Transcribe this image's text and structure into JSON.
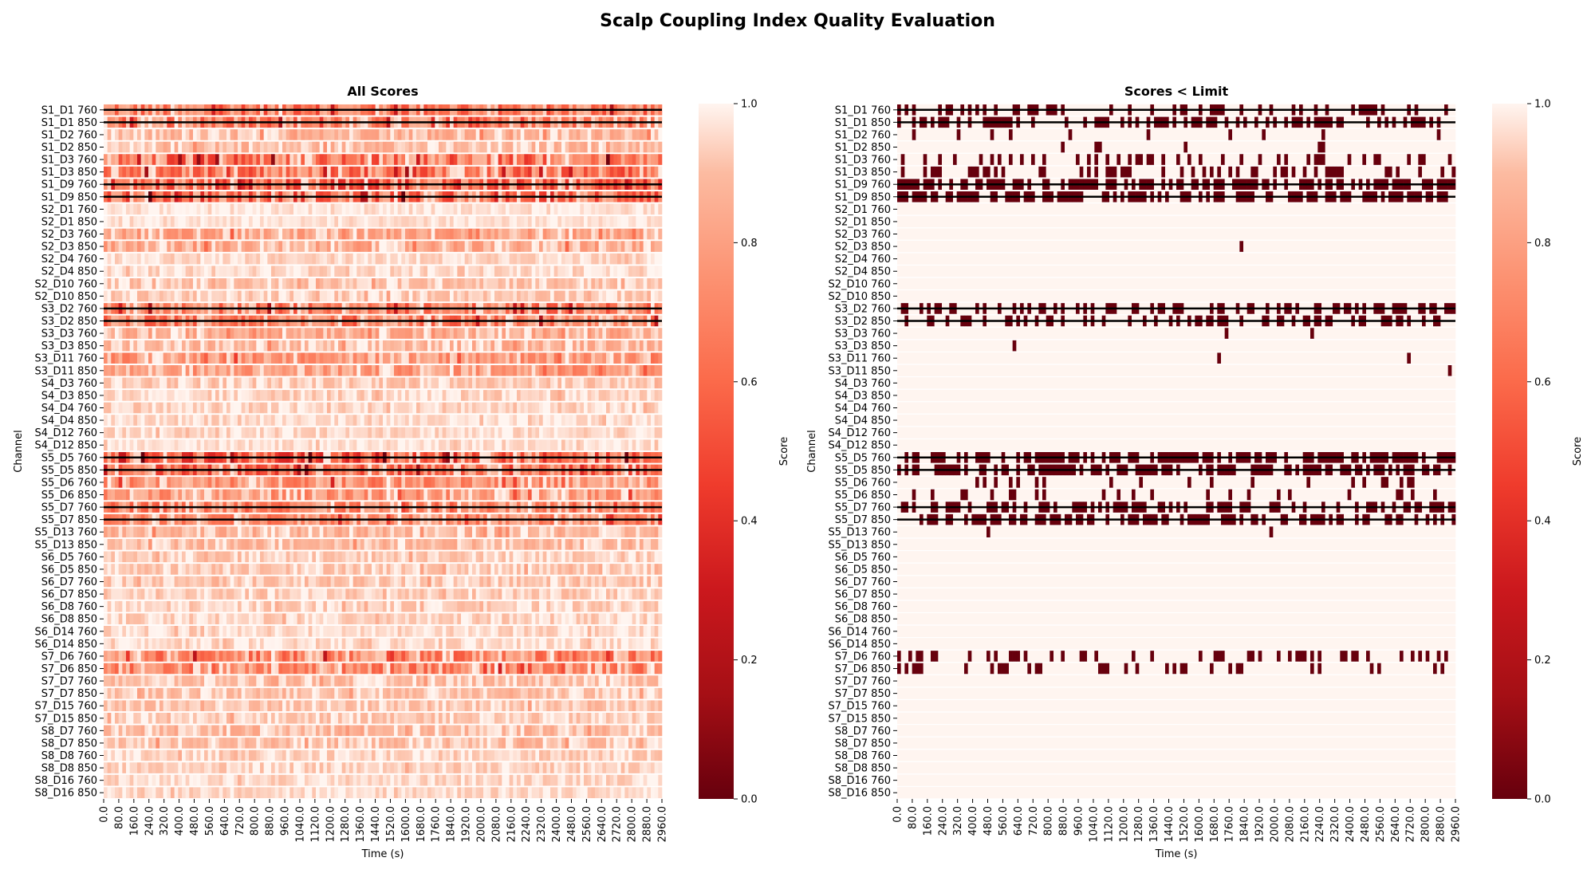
{
  "figure": {
    "title": "Scalp Coupling Index Quality Evaluation"
  },
  "colors": {
    "cmap_low": "#67000d",
    "cmap_mid": "#ef3b2c",
    "cmap_high": "#fff5f0",
    "bad_outline": "#000000"
  },
  "chart_data": [
    {
      "type": "heatmap",
      "title": "All Scores",
      "xlabel": "Time (s)",
      "ylabel": "Channel",
      "x_ticks": [
        "0.0",
        "80.0",
        "160.0",
        "240.0",
        "320.0",
        "400.0",
        "480.0",
        "560.0",
        "640.0",
        "720.0",
        "800.0",
        "880.0",
        "960.0",
        "1040.0",
        "1120.0",
        "1200.0",
        "1280.0",
        "1360.0",
        "1440.0",
        "1520.0",
        "1600.0",
        "1680.0",
        "1760.0",
        "1840.0",
        "1920.0",
        "2000.0",
        "2080.0",
        "2160.0",
        "2240.0",
        "2320.0",
        "2400.0",
        "2480.0",
        "2560.0",
        "2640.0",
        "2720.0",
        "2800.0",
        "2880.0",
        "2960.0"
      ],
      "x_range": [
        0,
        2960
      ],
      "channels": [
        "S1_D1 760",
        "S1_D1 850",
        "S1_D2 760",
        "S1_D2 850",
        "S1_D3 760",
        "S1_D3 850",
        "S1_D9 760",
        "S1_D9 850",
        "S2_D1 760",
        "S2_D1 850",
        "S2_D3 760",
        "S2_D3 850",
        "S2_D4 760",
        "S2_D4 850",
        "S2_D10 760",
        "S2_D10 850",
        "S3_D2 760",
        "S3_D2 850",
        "S3_D3 760",
        "S3_D3 850",
        "S3_D11 760",
        "S3_D11 850",
        "S4_D3 760",
        "S4_D3 850",
        "S4_D4 760",
        "S4_D4 850",
        "S4_D12 760",
        "S4_D12 850",
        "S5_D5 760",
        "S5_D5 850",
        "S5_D6 760",
        "S5_D6 850",
        "S5_D7 760",
        "S5_D7 850",
        "S5_D13 760",
        "S5_D13 850",
        "S6_D5 760",
        "S6_D5 850",
        "S6_D7 760",
        "S6_D7 850",
        "S6_D8 760",
        "S6_D8 850",
        "S6_D14 760",
        "S6_D14 850",
        "S7_D6 760",
        "S7_D6 850",
        "S7_D7 760",
        "S7_D7 850",
        "S7_D15 760",
        "S7_D15 850",
        "S8_D7 760",
        "S8_D7 850",
        "S8_D8 760",
        "S8_D8 850",
        "S8_D16 760",
        "S8_D16 850"
      ],
      "mean_score_by_channel": [
        0.72,
        0.74,
        0.9,
        0.91,
        0.7,
        0.72,
        0.66,
        0.68,
        0.97,
        0.97,
        0.86,
        0.87,
        0.96,
        0.96,
        0.93,
        0.94,
        0.74,
        0.75,
        0.88,
        0.9,
        0.82,
        0.83,
        0.94,
        0.95,
        0.95,
        0.96,
        0.96,
        0.97,
        0.66,
        0.7,
        0.8,
        0.82,
        0.76,
        0.78,
        0.9,
        0.91,
        0.94,
        0.94,
        0.93,
        0.94,
        0.95,
        0.95,
        0.96,
        0.96,
        0.76,
        0.77,
        0.92,
        0.93,
        0.93,
        0.94,
        0.91,
        0.92,
        0.95,
        0.95,
        0.96,
        0.96
      ],
      "flagged_channels": [
        "S1_D1 760",
        "S1_D1 850",
        "S1_D9 760",
        "S1_D9 850",
        "S3_D2 760",
        "S3_D2 850",
        "S5_D5 760",
        "S5_D5 850",
        "S5_D7 760",
        "S5_D7 850"
      ],
      "colorbar": {
        "label": "Score",
        "ticks": [
          "0.0",
          "0.2",
          "0.4",
          "0.6",
          "0.8",
          "1.0"
        ],
        "range": [
          0.0,
          1.0
        ]
      }
    },
    {
      "type": "heatmap",
      "title": "Scores < Limit",
      "xlabel": "Time (s)",
      "ylabel": "Channel",
      "x_ticks": [
        "0.0",
        "80.0",
        "160.0",
        "240.0",
        "320.0",
        "400.0",
        "480.0",
        "560.0",
        "640.0",
        "720.0",
        "800.0",
        "880.0",
        "960.0",
        "1040.0",
        "1120.0",
        "1200.0",
        "1280.0",
        "1360.0",
        "1440.0",
        "1520.0",
        "1600.0",
        "1680.0",
        "1760.0",
        "1840.0",
        "1920.0",
        "2000.0",
        "2080.0",
        "2160.0",
        "2240.0",
        "2320.0",
        "2400.0",
        "2480.0",
        "2560.0",
        "2640.0",
        "2720.0",
        "2800.0",
        "2880.0",
        "2960.0"
      ],
      "x_range": [
        0,
        2960
      ],
      "channels": [
        "S1_D1 760",
        "S1_D1 850",
        "S1_D2 760",
        "S1_D2 850",
        "S1_D3 760",
        "S1_D3 850",
        "S1_D9 760",
        "S1_D9 850",
        "S2_D1 760",
        "S2_D1 850",
        "S2_D3 760",
        "S2_D3 850",
        "S2_D4 760",
        "S2_D4 850",
        "S2_D10 760",
        "S2_D10 850",
        "S3_D2 760",
        "S3_D2 850",
        "S3_D3 760",
        "S3_D3 850",
        "S3_D11 760",
        "S3_D11 850",
        "S4_D3 760",
        "S4_D3 850",
        "S4_D4 760",
        "S4_D4 850",
        "S4_D12 760",
        "S4_D12 850",
        "S5_D5 760",
        "S5_D5 850",
        "S5_D6 760",
        "S5_D6 850",
        "S5_D7 760",
        "S5_D7 850",
        "S5_D13 760",
        "S5_D13 850",
        "S6_D5 760",
        "S6_D5 850",
        "S6_D7 760",
        "S6_D7 850",
        "S6_D8 760",
        "S6_D8 850",
        "S6_D14 760",
        "S6_D14 850",
        "S7_D6 760",
        "S7_D6 850",
        "S7_D7 760",
        "S7_D7 850",
        "S7_D15 760",
        "S7_D15 850",
        "S8_D7 760",
        "S8_D7 850",
        "S8_D8 760",
        "S8_D8 850",
        "S8_D16 760",
        "S8_D16 850"
      ],
      "below_limit_fraction_by_channel": [
        0.35,
        0.35,
        0.04,
        0.04,
        0.3,
        0.3,
        0.65,
        0.65,
        0,
        0,
        0.003,
        0.003,
        0,
        0,
        0,
        0,
        0.4,
        0.4,
        0.005,
        0.005,
        0.01,
        0.01,
        0,
        0,
        0,
        0,
        0,
        0,
        0.6,
        0.6,
        0.15,
        0.15,
        0.5,
        0.5,
        0.003,
        0.003,
        0,
        0,
        0,
        0,
        0,
        0,
        0,
        0,
        0.25,
        0.25,
        0,
        0,
        0,
        0,
        0,
        0,
        0,
        0,
        0,
        0
      ],
      "flagged_channels": [
        "S1_D1 760",
        "S1_D1 850",
        "S1_D9 760",
        "S1_D9 850",
        "S3_D2 760",
        "S3_D2 850",
        "S5_D5 760",
        "S5_D5 850",
        "S5_D7 760",
        "S5_D7 850"
      ],
      "colorbar": {
        "label": "Score",
        "ticks": [
          "0.0",
          "0.2",
          "0.4",
          "0.6",
          "0.8",
          "1.0"
        ],
        "range": [
          0.0,
          1.0
        ]
      }
    }
  ]
}
